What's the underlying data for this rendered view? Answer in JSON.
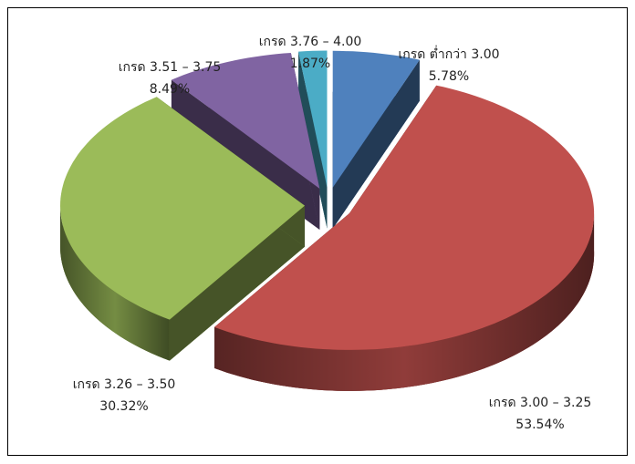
{
  "chart_data": {
    "type": "pie3d",
    "categories": [
      "เกรด ต่ำกว่า 3.00",
      "เกรด 3.00 – 3.25",
      "เกรด 3.26 – 3.50",
      "เกรด 3.51 – 3.75",
      "เกรด 3.76 – 4.00"
    ],
    "values": [
      5.78,
      53.54,
      30.32,
      8.49,
      1.87
    ],
    "value_labels": [
      "5.78%",
      "53.54%",
      "30.32%",
      "8.49%",
      "1.87%"
    ],
    "colors": [
      "#4f81bd",
      "#c0504d",
      "#9bbb59",
      "#8064a2",
      "#4bacc6"
    ]
  }
}
